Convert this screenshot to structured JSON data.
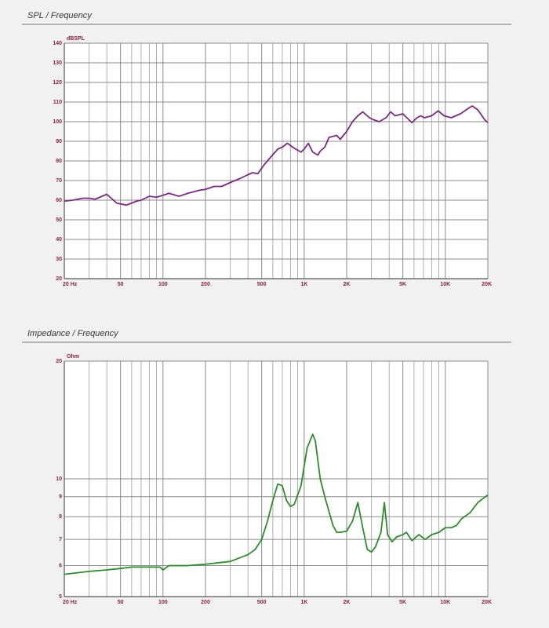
{
  "chart_data": [
    {
      "type": "line",
      "title": "SPL / Frequency",
      "y_unit": "dBSPL",
      "color": "#7a2a80",
      "xlog": true,
      "ylog": false,
      "grid": true,
      "xlim": [
        20,
        20000
      ],
      "ylim": [
        20,
        140
      ],
      "xticks": [
        {
          "value": 20,
          "label": "20 Hz"
        },
        50,
        100,
        200,
        500,
        {
          "value": 1000,
          "label": "1K"
        },
        {
          "value": 2000,
          "label": "2K"
        },
        {
          "value": 5000,
          "label": "5K"
        },
        {
          "value": 10000,
          "label": "10K"
        },
        {
          "value": 20000,
          "label": "20K"
        }
      ],
      "xminor_ticks": [
        30,
        40,
        60,
        70,
        80,
        90,
        300,
        400,
        600,
        700,
        800,
        900,
        3000,
        4000,
        6000,
        7000,
        8000,
        9000
      ],
      "yticks": [
        20,
        30,
        40,
        50,
        60,
        70,
        80,
        90,
        100,
        110,
        120,
        130,
        140
      ],
      "x": [
        20,
        23,
        27,
        30,
        33,
        37,
        40,
        43,
        47,
        55,
        60,
        65,
        70,
        80,
        90,
        100,
        110,
        130,
        150,
        180,
        200,
        230,
        260,
        300,
        350,
        400,
        430,
        470,
        520,
        580,
        650,
        700,
        760,
        850,
        950,
        1000,
        1070,
        1150,
        1250,
        1300,
        1400,
        1500,
        1700,
        1800,
        2000,
        2200,
        2400,
        2600,
        2900,
        3100,
        3400,
        3800,
        4100,
        4400,
        5000,
        5800,
        6300,
        6700,
        7100,
        8000,
        8900,
        9800,
        11000,
        12800,
        14700,
        15500,
        17000,
        19000,
        20000
      ],
      "values": [
        59.5,
        60,
        61,
        61,
        60.5,
        62,
        63,
        61,
        58.5,
        57.5,
        58.5,
        59.5,
        60,
        62,
        61.5,
        62.5,
        63.5,
        62,
        63.5,
        65,
        65.5,
        67,
        67,
        69,
        71,
        73,
        74,
        73.5,
        78,
        82,
        86,
        87,
        89,
        86.5,
        84.5,
        86,
        89,
        84.5,
        83,
        85,
        87,
        92,
        93,
        91,
        95,
        100,
        103,
        105,
        102,
        101,
        100,
        102,
        105,
        103,
        104,
        99.5,
        102,
        103,
        102,
        103,
        105.5,
        103,
        102,
        104,
        107,
        108,
        106,
        101,
        99.5
      ]
    },
    {
      "type": "line",
      "title": "Impedance / Frequency",
      "y_unit": "Ohm",
      "color": "#2e8b2e",
      "xlog": true,
      "ylog": true,
      "grid": true,
      "xlim": [
        20,
        20000
      ],
      "ylim": [
        5,
        20
      ],
      "xticks": [
        {
          "value": 20,
          "label": "20 Hz"
        },
        50,
        100,
        200,
        500,
        {
          "value": 1000,
          "label": "1K"
        },
        {
          "value": 2000,
          "label": "2K"
        },
        {
          "value": 5000,
          "label": "5K"
        },
        {
          "value": 10000,
          "label": "10K"
        },
        {
          "value": 20000,
          "label": "20K"
        }
      ],
      "xminor_ticks": [
        30,
        40,
        60,
        70,
        80,
        90,
        300,
        400,
        600,
        700,
        800,
        900,
        3000,
        4000,
        6000,
        7000,
        8000,
        9000
      ],
      "yticks": [
        5,
        6,
        7,
        8,
        9,
        10,
        20
      ],
      "x": [
        20,
        30,
        40,
        50,
        60,
        80,
        95,
        100,
        110,
        150,
        200,
        300,
        400,
        450,
        500,
        550,
        600,
        650,
        700,
        750,
        800,
        850,
        950,
        1050,
        1150,
        1200,
        1300,
        1400,
        1600,
        1700,
        1800,
        2000,
        2200,
        2400,
        2600,
        2800,
        3000,
        3200,
        3500,
        3700,
        3900,
        4200,
        4500,
        5000,
        5300,
        5800,
        6500,
        7200,
        8000,
        9000,
        10000,
        11000,
        12000,
        13000,
        15000,
        17000,
        20000
      ],
      "values": [
        5.7,
        5.8,
        5.85,
        5.9,
        5.95,
        5.95,
        5.95,
        5.85,
        6.0,
        6.0,
        6.05,
        6.15,
        6.4,
        6.6,
        7.0,
        7.8,
        8.8,
        9.7,
        9.6,
        8.8,
        8.5,
        8.6,
        9.6,
        12,
        13,
        12.5,
        10,
        9,
        7.6,
        7.3,
        7.3,
        7.35,
        7.8,
        8.7,
        7.5,
        6.6,
        6.5,
        6.7,
        7.3,
        8.7,
        7.2,
        6.9,
        7.1,
        7.2,
        7.3,
        6.95,
        7.2,
        7.0,
        7.2,
        7.3,
        7.5,
        7.5,
        7.6,
        7.9,
        8.2,
        8.7,
        9.1
      ]
    }
  ]
}
